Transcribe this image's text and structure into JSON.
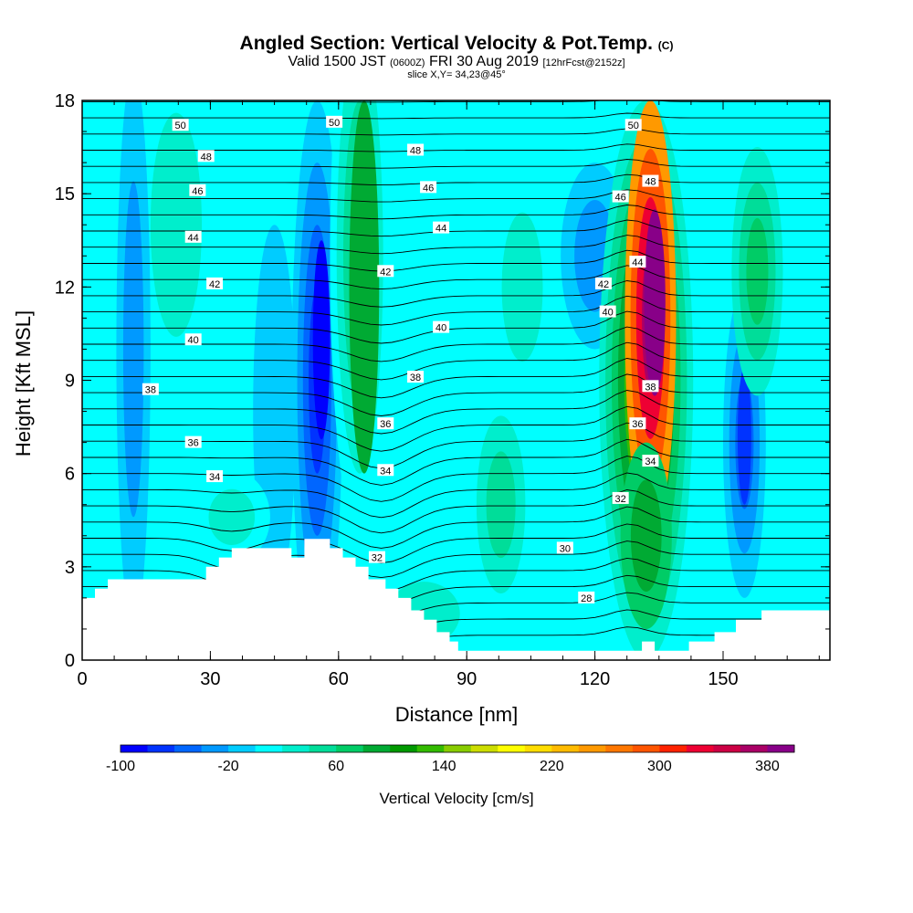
{
  "title": {
    "main": "Angled Section: Vertical Velocity & Pot.Temp.",
    "main_tag": "(C)",
    "valid_a": "Valid 1500 JST",
    "valid_b": "(0600Z)",
    "valid_c": "FRI 30 Aug 2019",
    "valid_d": "[12hrFcst@2152z]",
    "slice": "slice X,Y= 34,23@45°"
  },
  "chart_data": {
    "type": "heatmap",
    "xlabel": "Distance [nm]",
    "ylabel": "Height [Kft MSL]",
    "xlim": [
      0,
      175
    ],
    "ylim": [
      0,
      18
    ],
    "x_ticks": [
      "0",
      "30",
      "60",
      "90",
      "120",
      "150"
    ],
    "y_ticks": [
      "0",
      "3",
      "6",
      "9",
      "12",
      "15",
      "18"
    ],
    "colorbar": {
      "title": "Vertical Velocity [cm/s]",
      "min": -100,
      "max": 400,
      "step": 20,
      "tick_labels": [
        "-100",
        "-20",
        "60",
        "140",
        "220",
        "300",
        "380"
      ],
      "colors": [
        "#0000ff",
        "#0033ff",
        "#0066ff",
        "#0099ff",
        "#00ccff",
        "#00ffff",
        "#00eecc",
        "#00dd99",
        "#00cc66",
        "#00aa33",
        "#009900",
        "#33bb00",
        "#88cc00",
        "#ccdd00",
        "#ffff00",
        "#ffdd00",
        "#ffbb00",
        "#ff9900",
        "#ff7700",
        "#ff5500",
        "#ff2200",
        "#ee0033",
        "#cc0044",
        "#aa0066",
        "#880088"
      ]
    },
    "contours": {
      "variable": "Potential temperature (C)",
      "labels": [
        {
          "x": 23,
          "y": 17.2,
          "text": "50"
        },
        {
          "x": 59,
          "y": 17.3,
          "text": "50"
        },
        {
          "x": 129,
          "y": 17.2,
          "text": "50"
        },
        {
          "x": 29,
          "y": 16.2,
          "text": "48"
        },
        {
          "x": 78,
          "y": 16.4,
          "text": "48"
        },
        {
          "x": 133,
          "y": 15.4,
          "text": "48"
        },
        {
          "x": 27,
          "y": 15.1,
          "text": "46"
        },
        {
          "x": 81,
          "y": 15.2,
          "text": "46"
        },
        {
          "x": 126,
          "y": 14.9,
          "text": "46"
        },
        {
          "x": 26,
          "y": 13.6,
          "text": "44"
        },
        {
          "x": 84,
          "y": 13.9,
          "text": "44"
        },
        {
          "x": 130,
          "y": 12.8,
          "text": "44"
        },
        {
          "x": 31,
          "y": 12.1,
          "text": "42"
        },
        {
          "x": 71,
          "y": 12.5,
          "text": "42"
        },
        {
          "x": 122,
          "y": 12.1,
          "text": "42"
        },
        {
          "x": 26,
          "y": 10.3,
          "text": "40"
        },
        {
          "x": 84,
          "y": 10.7,
          "text": "40"
        },
        {
          "x": 123,
          "y": 11.2,
          "text": "40"
        },
        {
          "x": 16,
          "y": 8.7,
          "text": "38"
        },
        {
          "x": 78,
          "y": 9.1,
          "text": "38"
        },
        {
          "x": 133,
          "y": 8.8,
          "text": "38"
        },
        {
          "x": 26,
          "y": 7.0,
          "text": "36"
        },
        {
          "x": 71,
          "y": 7.6,
          "text": "36"
        },
        {
          "x": 130,
          "y": 7.6,
          "text": "36"
        },
        {
          "x": 31,
          "y": 5.9,
          "text": "34"
        },
        {
          "x": 71,
          "y": 6.1,
          "text": "34"
        },
        {
          "x": 133,
          "y": 6.4,
          "text": "34"
        },
        {
          "x": 69,
          "y": 3.3,
          "text": "32"
        },
        {
          "x": 126,
          "y": 5.2,
          "text": "32"
        },
        {
          "x": 113,
          "y": 3.6,
          "text": "30"
        },
        {
          "x": 118,
          "y": 2.0,
          "text": "28"
        }
      ]
    }
  }
}
